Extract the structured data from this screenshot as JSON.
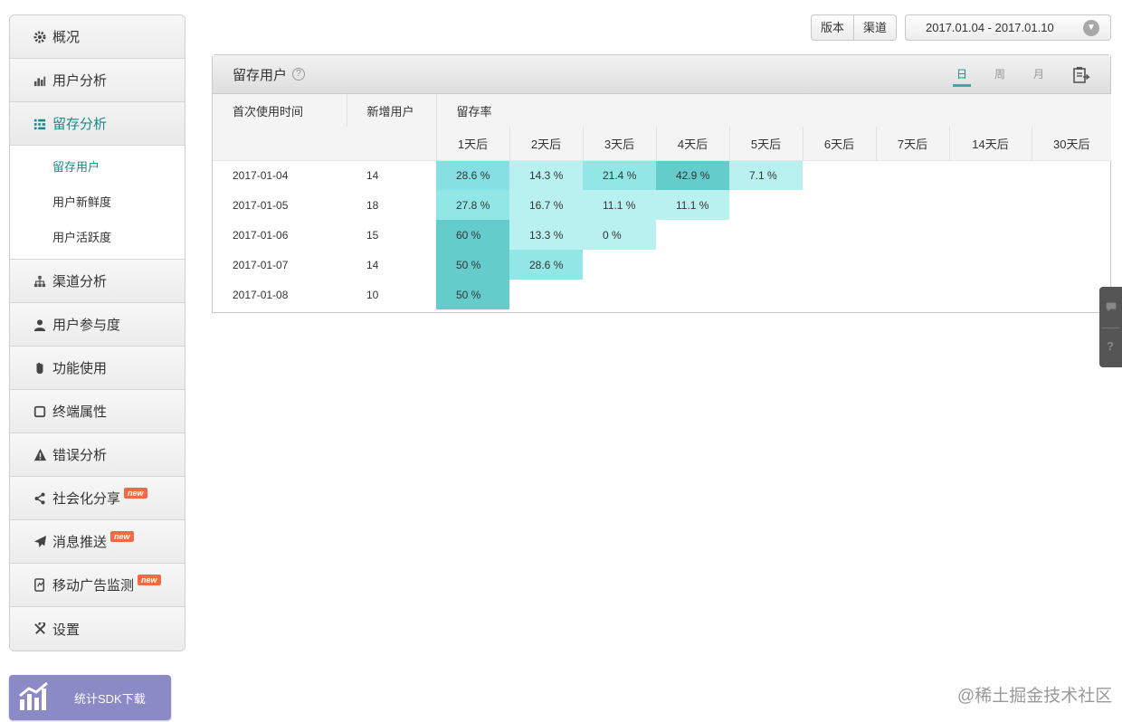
{
  "sidebar": {
    "items": [
      {
        "key": "overview",
        "label": "概况",
        "icon": "gear-icon"
      },
      {
        "key": "user-analysis",
        "label": "用户分析",
        "icon": "bar-chart-icon"
      },
      {
        "key": "retention-analysis",
        "label": "留存分析",
        "icon": "grid-icon",
        "active": true,
        "children": [
          {
            "label": "留存用户",
            "active": true
          },
          {
            "label": "用户新鲜度"
          },
          {
            "label": "用户活跃度"
          }
        ]
      },
      {
        "key": "channel-analysis",
        "label": "渠道分析",
        "icon": "hierarchy-icon"
      },
      {
        "key": "user-engagement",
        "label": "用户参与度",
        "icon": "person-icon"
      },
      {
        "key": "feature-usage",
        "label": "功能使用",
        "icon": "hand-icon"
      },
      {
        "key": "device-attributes",
        "label": "终端属性",
        "icon": "phone-icon"
      },
      {
        "key": "error-analysis",
        "label": "错误分析",
        "icon": "warning-icon"
      },
      {
        "key": "social-sharing",
        "label": "社会化分享",
        "icon": "share-icon",
        "badge": "new"
      },
      {
        "key": "push",
        "label": "消息推送",
        "icon": "send-icon",
        "badge": "new"
      },
      {
        "key": "ad-monitor",
        "label": "移动广告监测",
        "icon": "ad-icon",
        "badge": "new"
      },
      {
        "key": "settings",
        "label": "设置",
        "icon": "wrench-icon"
      }
    ],
    "sdk_button": "统计SDK下载"
  },
  "toolbar": {
    "version_label": "版本",
    "channel_label": "渠道",
    "date_range": "2017.01.04 - 2017.01.10"
  },
  "panel": {
    "title": "留存用户",
    "help": "?",
    "periods": [
      {
        "label": "日",
        "active": true
      },
      {
        "label": "周"
      },
      {
        "label": "月"
      }
    ],
    "headers": {
      "first_use": "首次使用时间",
      "new_users": "新增用户",
      "retention": "留存率"
    },
    "day_columns": [
      "1天后",
      "2天后",
      "3天后",
      "4天后",
      "5天后",
      "6天后",
      "7天后",
      "14天后",
      "30天后"
    ],
    "rows": [
      {
        "date": "2017-01-04",
        "new_users": "14",
        "cells": [
          "28.6 %",
          "14.3 %",
          "21.4 %",
          "42.9 %",
          "7.1 %"
        ],
        "levels": [
          3,
          1,
          2,
          4,
          1
        ]
      },
      {
        "date": "2017-01-05",
        "new_users": "18",
        "cells": [
          "27.8 %",
          "16.7 %",
          "11.1 %",
          "11.1 %"
        ],
        "levels": [
          2,
          1,
          1,
          1
        ]
      },
      {
        "date": "2017-01-06",
        "new_users": "15",
        "cells": [
          "60 %",
          "13.3 %",
          "0 %"
        ],
        "levels": [
          4,
          1,
          1
        ]
      },
      {
        "date": "2017-01-07",
        "new_users": "14",
        "cells": [
          "50 %",
          "28.6 %"
        ],
        "levels": [
          4,
          2
        ]
      },
      {
        "date": "2017-01-08",
        "new_users": "10",
        "cells": [
          "50 %"
        ],
        "levels": [
          4
        ]
      }
    ],
    "heat_colors": {
      "1": "#b9f1f1",
      "2": "#93e6e6",
      "3": "#86e0e3",
      "4": "#65cccc"
    }
  },
  "watermark": "@稀土掘金技术社区"
}
